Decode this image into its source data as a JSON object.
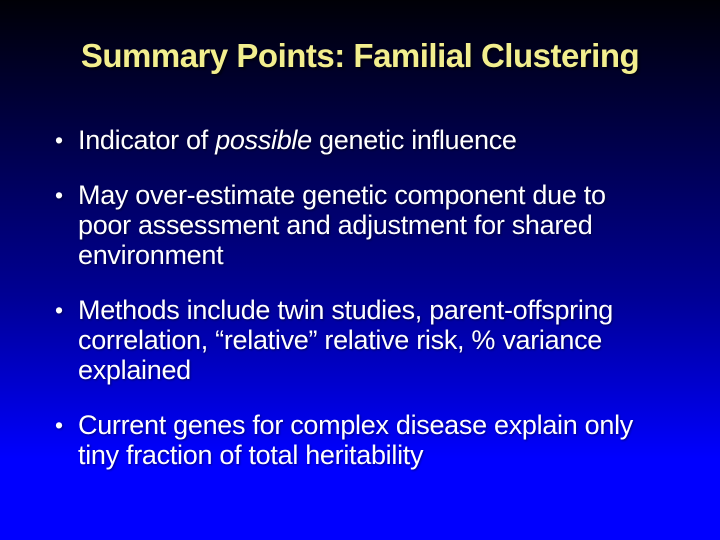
{
  "slide": {
    "title": "Summary Points: Familial Clustering",
    "title_color": "#f2ee8e",
    "text_color": "#ffffff",
    "background_top_color": "#000006",
    "background_mid_color": "#000095",
    "background_bottom_color": "#0000ff",
    "bullet_char": "•",
    "bullets": [
      {
        "lines": [
          [
            {
              "t": "Indicator of "
            },
            {
              "t": "possible",
              "italic": true
            },
            {
              "t": " genetic influence"
            }
          ]
        ]
      },
      {
        "lines": [
          [
            {
              "t": "May over-estimate genetic component due to"
            }
          ],
          [
            {
              "t": "poor assessment and adjustment for shared"
            }
          ],
          [
            {
              "t": "environment"
            }
          ]
        ]
      },
      {
        "lines": [
          [
            {
              "t": "Methods include twin studies, parent-offspring"
            }
          ],
          [
            {
              "t": "correlation, “relative” relative risk, % variance"
            }
          ],
          [
            {
              "t": "explained"
            }
          ]
        ]
      },
      {
        "lines": [
          [
            {
              "t": "Current genes for complex disease explain only"
            }
          ],
          [
            {
              "t": "tiny fraction of total heritability"
            }
          ]
        ]
      }
    ]
  }
}
